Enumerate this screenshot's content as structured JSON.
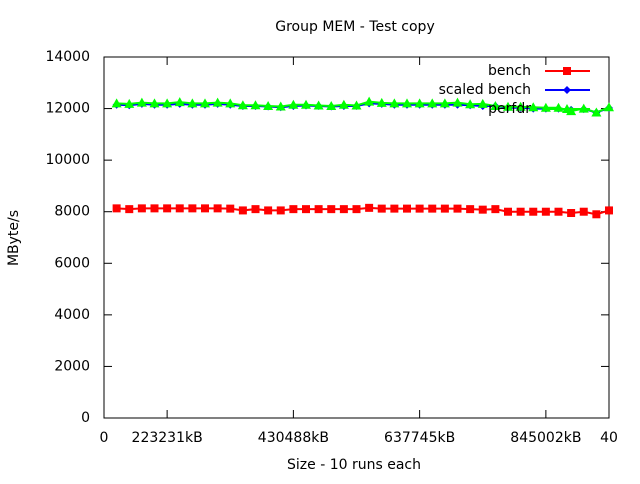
{
  "chart_data": {
    "type": "line",
    "title": "Group MEM - Test copy",
    "x_label": "Size - 10 runs each",
    "y_label": "MByte/s",
    "x": [
      1,
      2,
      3,
      4,
      5,
      6,
      7,
      8,
      9,
      10,
      11,
      12,
      13,
      14,
      15,
      16,
      17,
      18,
      19,
      20,
      21,
      22,
      23,
      24,
      25,
      26,
      27,
      28,
      29,
      30,
      31,
      32,
      33,
      34,
      35,
      36,
      37,
      38,
      39,
      40
    ],
    "xlim": [
      0,
      40
    ],
    "xticks": [
      0,
      {
        "value": 5,
        "label": "223231kB"
      },
      {
        "value": 15,
        "label": "430488kB"
      },
      {
        "value": 25,
        "label": "637745kB"
      },
      {
        "value": 35,
        "label": "845002kB"
      },
      40
    ],
    "ylim": [
      0,
      14000
    ],
    "yticks": [
      0,
      2000,
      4000,
      6000,
      8000,
      10000,
      12000,
      14000
    ],
    "grid": false,
    "legend": "top-right",
    "series": [
      {
        "name": "bench",
        "color": "#ff0000",
        "marker": "square",
        "values": [
          8130,
          8100,
          8130,
          8130,
          8130,
          8130,
          8130,
          8130,
          8130,
          8120,
          8050,
          8100,
          8050,
          8050,
          8100,
          8100,
          8100,
          8100,
          8100,
          8100,
          8150,
          8120,
          8120,
          8120,
          8120,
          8120,
          8120,
          8120,
          8100,
          8080,
          8100,
          8000,
          8000,
          8000,
          8000,
          8000,
          7950,
          8000,
          7900,
          8050
        ]
      },
      {
        "name": "scaled bench",
        "color": "#0000ff",
        "marker": "diamond",
        "values": [
          12150,
          12130,
          12180,
          12150,
          12150,
          12180,
          12150,
          12150,
          12180,
          12150,
          12100,
          12100,
          12080,
          12050,
          12100,
          12120,
          12100,
          12080,
          12100,
          12100,
          12200,
          12180,
          12150,
          12150,
          12150,
          12150,
          12150,
          12150,
          12130,
          12100,
          12100,
          12030,
          12030,
          12000,
          12000,
          12000,
          11950,
          11980,
          11850,
          12020
        ]
      },
      {
        "name": "perfdr",
        "color": "#00ff00",
        "marker": "triangle",
        "values": [
          12200,
          12180,
          12230,
          12200,
          12200,
          12250,
          12200,
          12200,
          12230,
          12200,
          12130,
          12130,
          12100,
          12080,
          12150,
          12150,
          12120,
          12100,
          12150,
          12120,
          12270,
          12220,
          12200,
          12200,
          12200,
          12200,
          12200,
          12230,
          12170,
          12180,
          12100,
          12070,
          12070,
          12050,
          12030,
          12030,
          11900,
          12000,
          11850,
          12050
        ]
      }
    ]
  }
}
